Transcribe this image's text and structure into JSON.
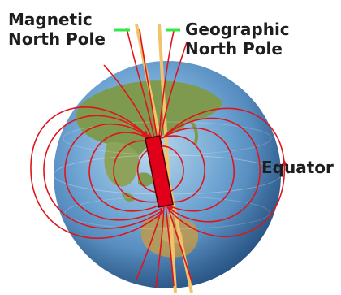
{
  "labels": {
    "magnetic_line1": "Magnetic",
    "magnetic_line2": "North Pole",
    "geographic_line1": "Geographic",
    "geographic_line2": "North Pole",
    "equator": "Equator"
  },
  "colors": {
    "field_lines": "#e0141b",
    "axis": "#f2c46a",
    "magnet": "#e0001a",
    "leader_lines": "#35e84a",
    "ocean": "#3b78b6",
    "land": "#8aa35a"
  }
}
